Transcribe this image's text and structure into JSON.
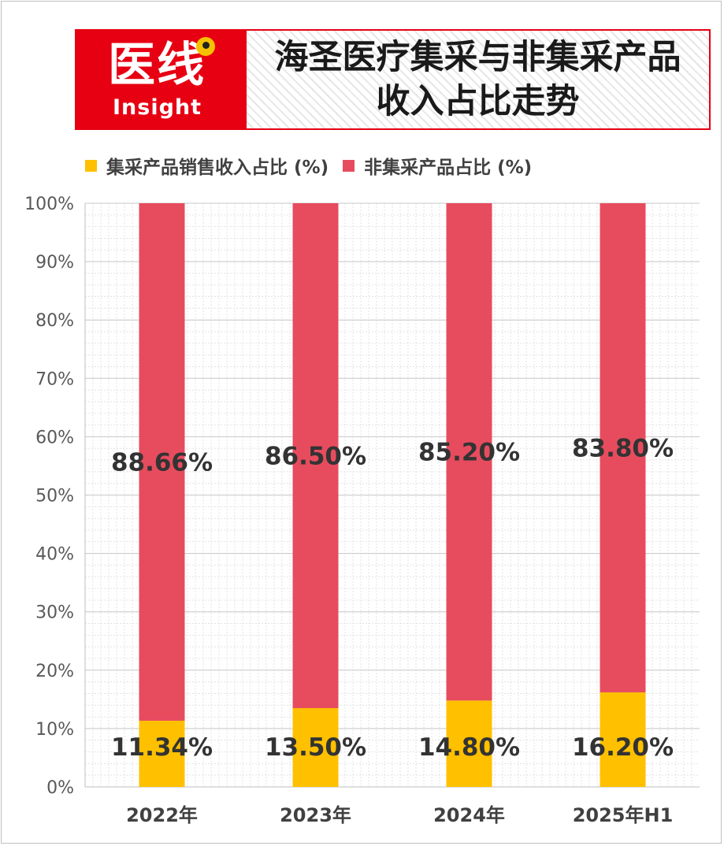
{
  "header": {
    "logo_text": "医线",
    "logo_sub": "Insight",
    "title_line1": "海圣医疗集采与非集采产品",
    "title_line2": "收入占比走势"
  },
  "colors": {
    "brand_red": "#e60012",
    "series_vbp": "#ffc000",
    "series_non_vbp": "#e74c5e"
  },
  "chart_data": {
    "type": "bar",
    "stacked": true,
    "percent_stacked": true,
    "categories": [
      "2022年",
      "2023年",
      "2024年",
      "2025年H1"
    ],
    "series": [
      {
        "name": "集采产品销售收入占比 (%)",
        "values": [
          11.34,
          13.5,
          14.8,
          16.2
        ],
        "labels": [
          "11.34%",
          "13.50%",
          "14.80%",
          "16.20%"
        ],
        "color": "#ffc000"
      },
      {
        "name": "非集采产品占比 (%)",
        "values": [
          88.66,
          86.5,
          85.2,
          83.8
        ],
        "labels": [
          "88.66%",
          "86.50%",
          "85.20%",
          "83.80%"
        ],
        "color": "#e74c5e"
      }
    ],
    "ylim": [
      0,
      100
    ],
    "yticks": [
      "0%",
      "10%",
      "20%",
      "30%",
      "40%",
      "50%",
      "60%",
      "70%",
      "80%",
      "90%",
      "100%"
    ],
    "legend_position": "top",
    "grid": true,
    "xlabel": "",
    "ylabel": ""
  }
}
